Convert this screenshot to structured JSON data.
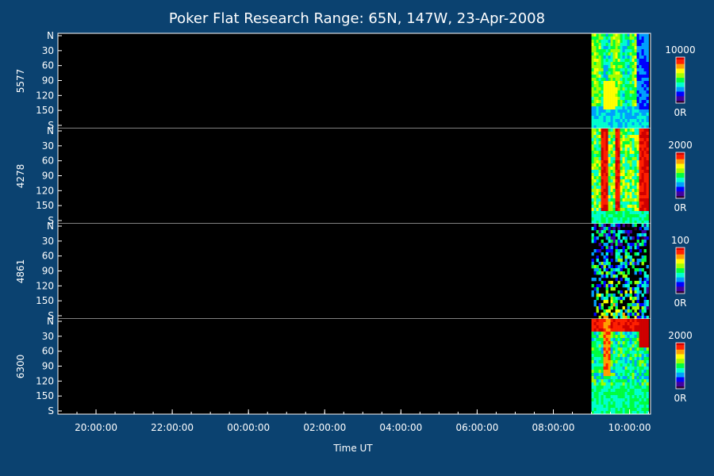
{
  "chart_data": {
    "type": "heatmap",
    "title": "Poker Flat Research Range: 65N, 147W, 23-Apr-2008",
    "xlabel": "Time UT",
    "x_tick_labels": [
      "20:00:00",
      "22:00:00",
      "00:00:00",
      "02:00:00",
      "04:00:00",
      "06:00:00",
      "08:00:00",
      "10:00:00"
    ],
    "x_range_hours": [
      19.0,
      34.55
    ],
    "y_tick_labels": [
      "N",
      "30",
      "60",
      "90",
      "120",
      "150",
      "S"
    ],
    "y_range": [
      0,
      180
    ],
    "colormap": [
      "#300030",
      "#4000a0",
      "#0000ff",
      "#00a0ff",
      "#00ffd0",
      "#00ff40",
      "#a0ff00",
      "#ffff00",
      "#ffa000",
      "#ff2000",
      "#d00000"
    ],
    "background_color": "#0b4270",
    "plot_background": "#000000",
    "panels": [
      {
        "name": "5577",
        "cbar_max": "10000",
        "cbar_min": "0R",
        "data_start_hour": 33.0,
        "data_end_hour": 34.5,
        "pattern": "green-discrete-arcs"
      },
      {
        "name": "4278",
        "cbar_max": "2000",
        "cbar_min": "0R",
        "data_start_hour": 33.0,
        "data_end_hour": 34.5,
        "pattern": "saturated-red-bands"
      },
      {
        "name": "4861",
        "cbar_max": "100",
        "cbar_min": "0R",
        "data_start_hour": 33.0,
        "data_end_hour": 34.5,
        "pattern": "noisy-speckle"
      },
      {
        "name": "6300",
        "cbar_max": "2000",
        "cbar_min": "0R",
        "data_start_hour": 33.0,
        "data_end_hour": 34.5,
        "pattern": "red-top-green-bulk"
      }
    ]
  }
}
